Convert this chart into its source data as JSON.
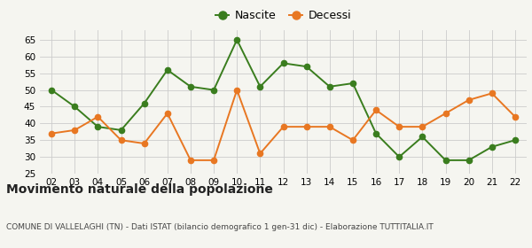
{
  "years": [
    "02",
    "03",
    "04",
    "05",
    "06",
    "07",
    "08",
    "09",
    "10",
    "11",
    "12",
    "13",
    "14",
    "15",
    "16",
    "17",
    "18",
    "19",
    "20",
    "21",
    "22"
  ],
  "nascite": [
    50,
    45,
    39,
    38,
    46,
    56,
    51,
    50,
    65,
    51,
    58,
    57,
    51,
    52,
    37,
    30,
    36,
    29,
    29,
    33,
    35
  ],
  "decessi": [
    37,
    38,
    42,
    35,
    34,
    43,
    29,
    29,
    50,
    31,
    39,
    39,
    39,
    35,
    44,
    39,
    39,
    43,
    47,
    49,
    42
  ],
  "nascite_color": "#3a7d1e",
  "decessi_color": "#e87722",
  "marker_size": 4.5,
  "line_width": 1.4,
  "ylim": [
    25,
    68
  ],
  "yticks": [
    25,
    30,
    35,
    40,
    45,
    50,
    55,
    60,
    65
  ],
  "title": "Movimento naturale della popolazione",
  "subtitle": "COMUNE DI VALLELAGHI (TN) - Dati ISTAT (bilancio demografico 1 gen-31 dic) - Elaborazione TUTTITALIA.IT",
  "legend_nascite": "Nascite",
  "legend_decessi": "Decessi",
  "bg_color": "#f5f5f0",
  "grid_color": "#cccccc",
  "tick_fontsize": 7.5,
  "title_fontsize": 10,
  "subtitle_fontsize": 6.5,
  "legend_fontsize": 9
}
